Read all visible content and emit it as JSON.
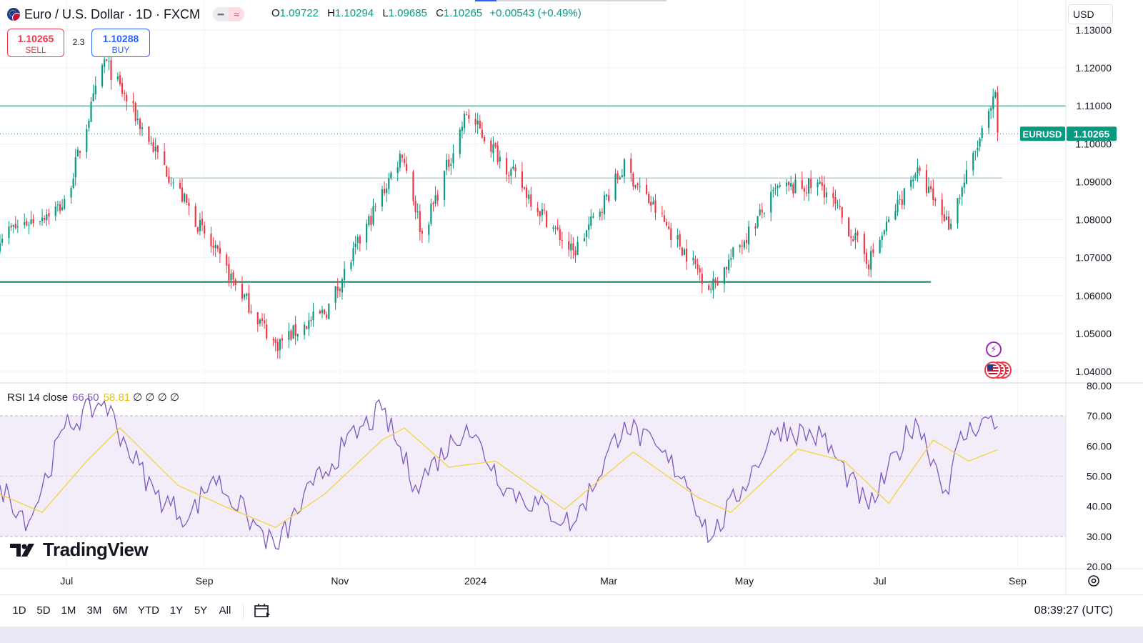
{
  "header": {
    "symbol_title": "Euro / U.S. Dollar · 1D · FXCM",
    "ohlc": {
      "open_label": "O",
      "open": "1.09722",
      "high_label": "H",
      "high": "1.10294",
      "low_label": "L",
      "low": "1.09685",
      "close_label": "C",
      "close": "1.10265",
      "change": "+0.00543 (+0.49%)"
    },
    "currency": "USD"
  },
  "trade": {
    "sell_price": "1.10265",
    "sell_label": "SELL",
    "spread": "2.3",
    "buy_price": "1.10288",
    "buy_label": "BUY"
  },
  "rsi_legend": {
    "label": "RSI 14 close",
    "rsi_value": "66.50",
    "ma_value": "58.81",
    "na": "∅ ∅ ∅ ∅"
  },
  "brand": "TradingView",
  "timeframes": [
    "1D",
    "5D",
    "1M",
    "3M",
    "6M",
    "YTD",
    "1Y",
    "5Y",
    "All"
  ],
  "clock": "08:39:27 (UTC)",
  "colors": {
    "up": "#089981",
    "down": "#f23645",
    "rsi_line": "#7e57c2",
    "rsi_ma": "#f7d23e",
    "rsi_band": "#ede7f6",
    "hline": "#22886c"
  },
  "chart_data": [
    {
      "type": "candlestick",
      "symbol": "EURUSD",
      "last_price_label": "EURUSD",
      "last_price": "1.10265",
      "y_ticks": [
        "1.13000",
        "1.12000",
        "1.11000",
        "1.10000",
        "1.09000",
        "1.08000",
        "1.07000",
        "1.06000",
        "1.05000",
        "1.04000"
      ],
      "ylim": [
        1.04,
        1.13
      ],
      "x_ticks": [
        "Jul",
        "Sep",
        "Nov",
        "2024",
        "Mar",
        "May",
        "Jul",
        "Sep"
      ],
      "x_range": [
        "2023-06-01",
        "2024-09-06"
      ],
      "horizontal_lines": [
        {
          "value": 1.11,
          "from": "2023-06-01",
          "to": "2024-09-06"
        },
        {
          "value": 1.091,
          "from": "2023-08-15",
          "to": "2024-08-25",
          "thin": true
        },
        {
          "value": 1.0636,
          "from": "2023-06-01",
          "to": "2024-07-24",
          "thick": true
        }
      ],
      "key_closes": [
        {
          "date": "2023-06-01",
          "close": 1.076
        },
        {
          "date": "2023-06-30",
          "close": 1.084
        },
        {
          "date": "2023-07-18",
          "close": 1.122
        },
        {
          "date": "2023-08-10",
          "close": 1.098
        },
        {
          "date": "2023-09-05",
          "close": 1.072
        },
        {
          "date": "2023-10-03",
          "close": 1.047
        },
        {
          "date": "2023-10-26",
          "close": 1.056
        },
        {
          "date": "2023-11-29",
          "close": 1.098
        },
        {
          "date": "2023-12-08",
          "close": 1.076
        },
        {
          "date": "2023-12-28",
          "close": 1.108
        },
        {
          "date": "2024-02-14",
          "close": 1.071
        },
        {
          "date": "2024-03-08",
          "close": 1.094
        },
        {
          "date": "2024-04-16",
          "close": 1.062
        },
        {
          "date": "2024-05-16",
          "close": 1.088
        },
        {
          "date": "2024-06-05",
          "close": 1.089
        },
        {
          "date": "2024-06-26",
          "close": 1.069
        },
        {
          "date": "2024-07-17",
          "close": 1.093
        },
        {
          "date": "2024-08-01",
          "close": 1.079
        },
        {
          "date": "2024-08-22",
          "close": 1.112
        },
        {
          "date": "2024-08-23",
          "close": 1.103
        }
      ]
    },
    {
      "type": "line",
      "title": "RSI 14 close",
      "ylim": [
        20,
        80
      ],
      "y_ticks": [
        "80.00",
        "70.00",
        "60.00",
        "50.00",
        "40.00",
        "30.00",
        "20.00"
      ],
      "band": [
        30,
        70
      ],
      "midline": 50,
      "series": [
        {
          "name": "RSI",
          "points": [
            {
              "date": "2023-06-01",
              "value": 47
            },
            {
              "date": "2023-06-14",
              "value": 35
            },
            {
              "date": "2023-06-30",
              "value": 66
            },
            {
              "date": "2023-07-18",
              "value": 75
            },
            {
              "date": "2023-07-28",
              "value": 60
            },
            {
              "date": "2023-08-10",
              "value": 44
            },
            {
              "date": "2023-08-25",
              "value": 36
            },
            {
              "date": "2023-09-05",
              "value": 50
            },
            {
              "date": "2023-09-20",
              "value": 37
            },
            {
              "date": "2023-10-03",
              "value": 26
            },
            {
              "date": "2023-10-20",
              "value": 47
            },
            {
              "date": "2023-11-03",
              "value": 60
            },
            {
              "date": "2023-11-20",
              "value": 72
            },
            {
              "date": "2023-12-05",
              "value": 47
            },
            {
              "date": "2023-12-28",
              "value": 67
            },
            {
              "date": "2024-01-15",
              "value": 46
            },
            {
              "date": "2024-02-14",
              "value": 34
            },
            {
              "date": "2024-03-08",
              "value": 68
            },
            {
              "date": "2024-04-04",
              "value": 50
            },
            {
              "date": "2024-04-16",
              "value": 29
            },
            {
              "date": "2024-05-16",
              "value": 66
            },
            {
              "date": "2024-06-05",
              "value": 63
            },
            {
              "date": "2024-06-26",
              "value": 39
            },
            {
              "date": "2024-07-17",
              "value": 69
            },
            {
              "date": "2024-08-01",
              "value": 44
            },
            {
              "date": "2024-08-05",
              "value": 61
            },
            {
              "date": "2024-08-16",
              "value": 69
            },
            {
              "date": "2024-08-23",
              "value": 66.5
            }
          ]
        },
        {
          "name": "RSI-based MA",
          "points": [
            {
              "date": "2023-06-01",
              "value": 44
            },
            {
              "date": "2023-06-20",
              "value": 38
            },
            {
              "date": "2023-07-10",
              "value": 55
            },
            {
              "date": "2023-07-25",
              "value": 66
            },
            {
              "date": "2023-08-20",
              "value": 47
            },
            {
              "date": "2023-09-10",
              "value": 40
            },
            {
              "date": "2023-10-03",
              "value": 33
            },
            {
              "date": "2023-10-25",
              "value": 44
            },
            {
              "date": "2023-11-20",
              "value": 62
            },
            {
              "date": "2023-11-30",
              "value": 66
            },
            {
              "date": "2023-12-20",
              "value": 53
            },
            {
              "date": "2024-01-10",
              "value": 55
            },
            {
              "date": "2024-02-10",
              "value": 39
            },
            {
              "date": "2024-03-12",
              "value": 58
            },
            {
              "date": "2024-04-10",
              "value": 43
            },
            {
              "date": "2024-04-25",
              "value": 38
            },
            {
              "date": "2024-05-25",
              "value": 59
            },
            {
              "date": "2024-06-15",
              "value": 55
            },
            {
              "date": "2024-07-05",
              "value": 41
            },
            {
              "date": "2024-07-25",
              "value": 62
            },
            {
              "date": "2024-08-10",
              "value": 55
            },
            {
              "date": "2024-08-23",
              "value": 58.81
            }
          ]
        }
      ]
    }
  ]
}
